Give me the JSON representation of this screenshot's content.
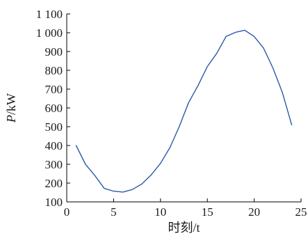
{
  "chart_data": {
    "type": "line",
    "title": "",
    "xlabel": "时刻/t",
    "ylabel_var": "P",
    "ylabel_unit": "/kW",
    "xlim": [
      0,
      25
    ],
    "ylim": [
      100,
      1100
    ],
    "x_ticks": [
      0,
      5,
      10,
      15,
      20,
      25
    ],
    "x_tick_labels": [
      "0",
      "5",
      "10",
      "15",
      "20",
      "25"
    ],
    "y_ticks": [
      100,
      200,
      300,
      400,
      500,
      600,
      700,
      800,
      900,
      1000,
      1100
    ],
    "y_tick_labels": [
      "100",
      "200",
      "300",
      "400",
      "500",
      "600",
      "700",
      "800",
      "900",
      "1 000",
      "1 100"
    ],
    "grid": false,
    "series": [
      {
        "color": "#2b5aa8",
        "x": [
          1,
          2,
          3,
          4,
          5,
          6,
          7,
          8,
          9,
          10,
          11,
          12,
          13,
          14,
          15,
          16,
          17,
          18,
          19,
          20,
          21,
          22,
          23,
          24
        ],
        "y": [
          400,
          300,
          240,
          172,
          157,
          152,
          166,
          195,
          243,
          305,
          388,
          500,
          628,
          718,
          820,
          890,
          980,
          1002,
          1013,
          980,
          918,
          812,
          683,
          510
        ]
      }
    ]
  }
}
